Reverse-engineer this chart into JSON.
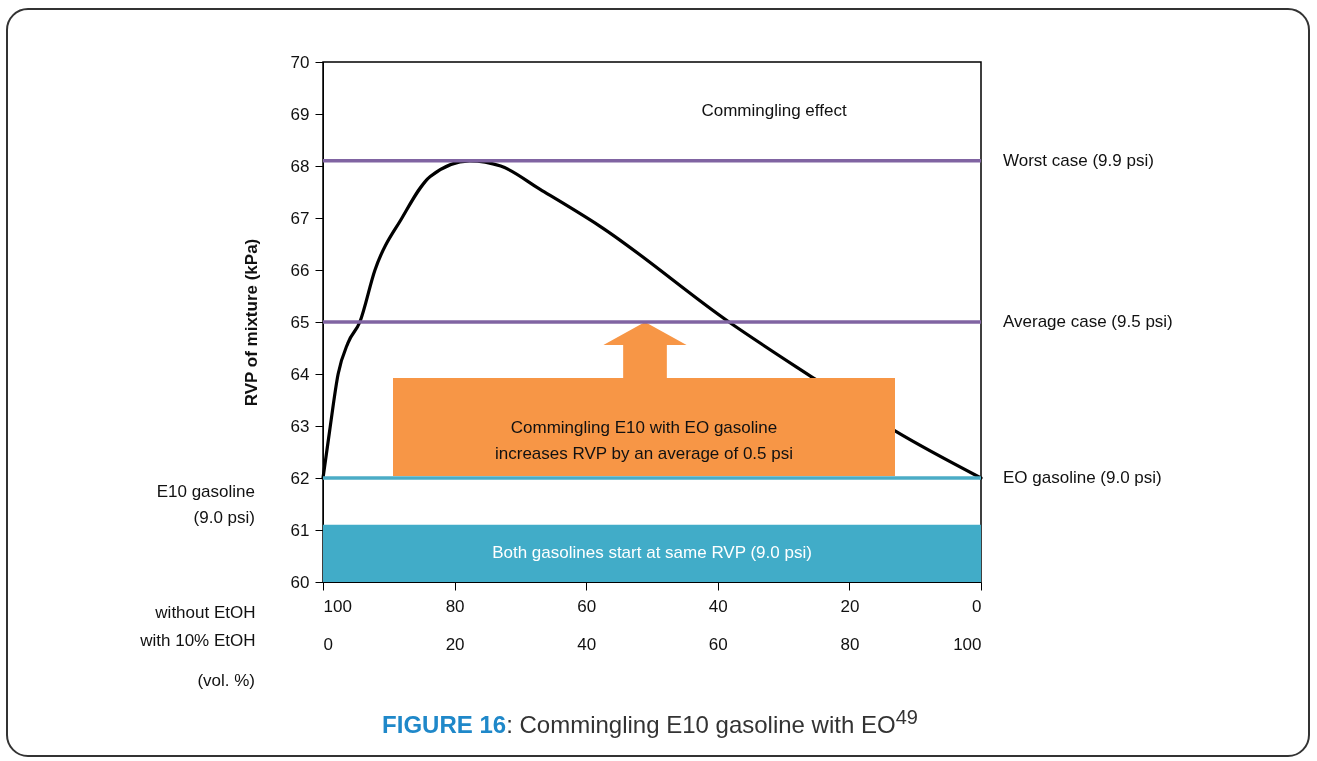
{
  "chart_data": {
    "type": "line",
    "title": "FIGURE 16: Commingling E10 gasoline with EO$^{49}$",
    "ylabel": "RVP of mixture (kPa)",
    "xlabel": "with 10% EtOH",
    "x2label": "without EtOH",
    "xlim": [
      0,
      100
    ],
    "xticks": [
      0,
      20,
      40,
      60,
      80,
      100
    ],
    "x2lim": [
      100,
      0
    ],
    "x2ticks": [
      100,
      80,
      60,
      40,
      20,
      0
    ],
    "ylim": [
      60,
      70
    ],
    "yticks": [
      60,
      61,
      62,
      63,
      64,
      65,
      66,
      67,
      68,
      69,
      70
    ],
    "series": [
      {
        "color": "#000000",
        "x": [
          0,
          1,
          2.3,
          3.8,
          5.6,
          7.9,
          12,
          16.3,
          22.3,
          27,
          33,
          42,
          61.7,
          74.8,
          87,
          100
        ],
        "values": [
          62.0,
          62.9,
          64.0,
          64.6,
          65.0,
          66.0,
          67.0,
          67.8,
          68.1,
          68.0,
          67.55,
          66.85,
          65.0,
          63.9,
          62.9,
          62.0
        ]
      }
    ],
    "ref_lines": [
      {
        "axis": "y",
        "value": 68.1,
        "label": "Worst case (9.9 psi)",
        "color": "#8064a2"
      },
      {
        "axis": "y",
        "value": 65,
        "label": "Average case (9.5 psi)",
        "color": "#8064a2"
      },
      {
        "axis": "y",
        "value": 62,
        "label": "EO gasoline (9.0 psi)",
        "color": "#4bacc6"
      }
    ],
    "bands": [
      {
        "axis": "y",
        "from": 60,
        "to": 61.1,
        "label": "Both gasolines start at same RVP (9.0 psi)",
        "color": "#41acc8"
      }
    ],
    "annotations": [
      "Commingling effect",
      "Commingling E10 with EO gasoline increases RVP by an average of 0.5 psi",
      "(vol. %)",
      "E10 gasoline (9.0 psi)"
    ]
  }
}
